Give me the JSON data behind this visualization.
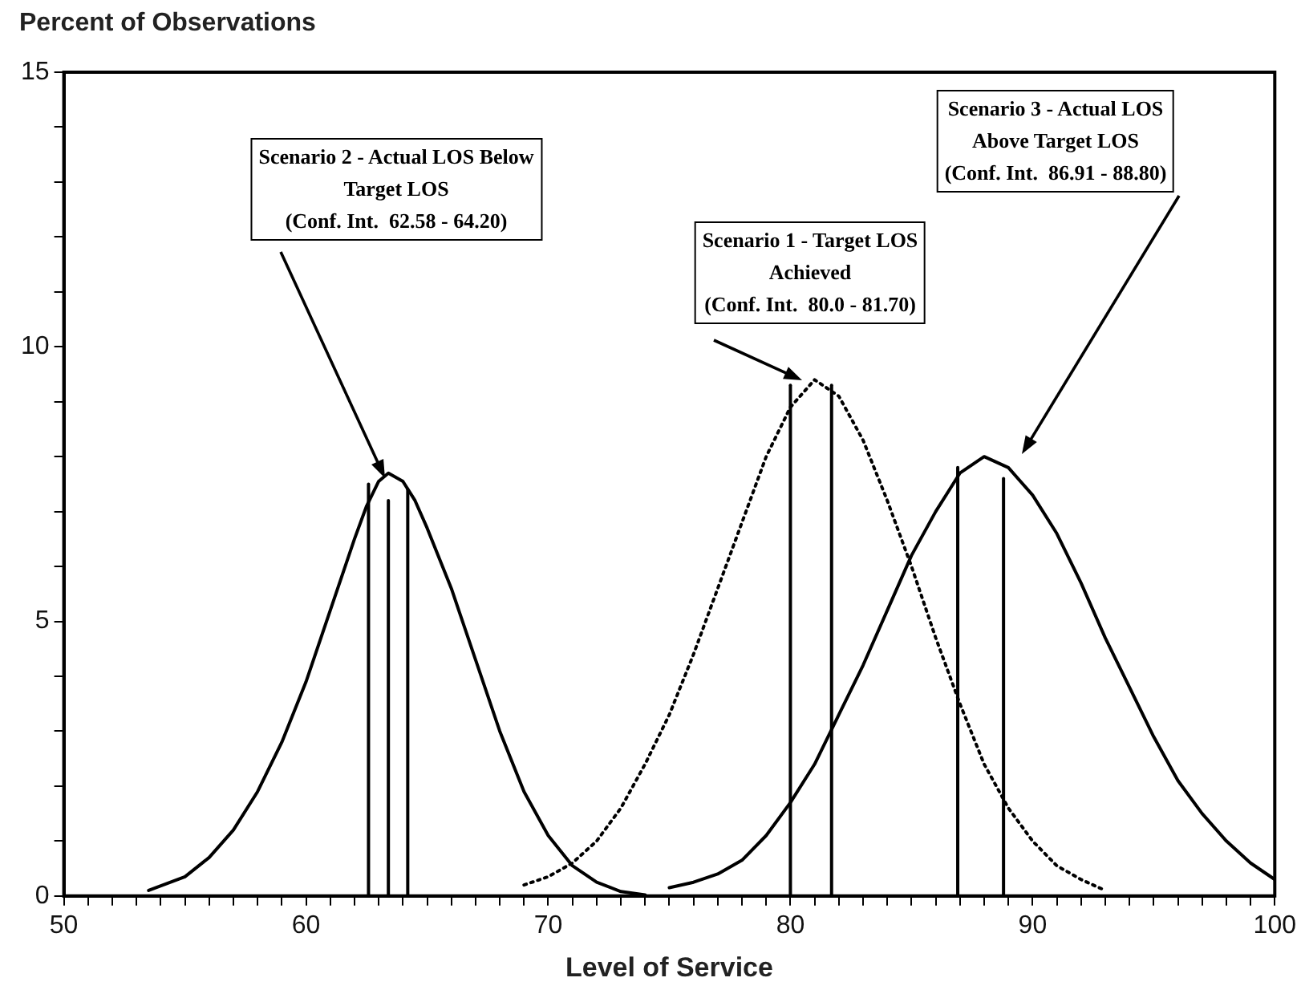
{
  "chart_data": {
    "type": "line",
    "ylabel": "Percent of Observations",
    "xlabel": "Level of Service",
    "xlim": [
      50,
      100
    ],
    "ylim": [
      0,
      15
    ],
    "xticks": [
      50,
      {
        "value": 51,
        "label": null
      },
      {
        "value": 52,
        "label": null
      },
      {
        "value": 53,
        "label": null
      },
      {
        "value": 54,
        "label": null
      },
      {
        "value": 55,
        "label": null
      },
      {
        "value": 56,
        "label": null
      },
      {
        "value": 57,
        "label": null
      },
      {
        "value": 58,
        "label": null
      },
      {
        "value": 59,
        "label": null
      },
      60,
      {
        "value": 61,
        "label": null
      },
      {
        "value": 62,
        "label": null
      },
      {
        "value": 63,
        "label": null
      },
      {
        "value": 64,
        "label": null
      },
      {
        "value": 65,
        "label": null
      },
      {
        "value": 66,
        "label": null
      },
      {
        "value": 67,
        "label": null
      },
      {
        "value": 68,
        "label": null
      },
      {
        "value": 69,
        "label": null
      },
      70,
      {
        "value": 71,
        "label": null
      },
      {
        "value": 72,
        "label": null
      },
      {
        "value": 73,
        "label": null
      },
      {
        "value": 74,
        "label": null
      },
      {
        "value": 75,
        "label": null
      },
      {
        "value": 76,
        "label": null
      },
      {
        "value": 77,
        "label": null
      },
      {
        "value": 78,
        "label": null
      },
      {
        "value": 79,
        "label": null
      },
      80,
      {
        "value": 81,
        "label": null
      },
      {
        "value": 82,
        "label": null
      },
      {
        "value": 83,
        "label": null
      },
      {
        "value": 84,
        "label": null
      },
      {
        "value": 85,
        "label": null
      },
      {
        "value": 86,
        "label": null
      },
      {
        "value": 87,
        "label": null
      },
      {
        "value": 88,
        "label": null
      },
      {
        "value": 89,
        "label": null
      },
      90,
      {
        "value": 91,
        "label": null
      },
      {
        "value": 92,
        "label": null
      },
      {
        "value": 93,
        "label": null
      },
      {
        "value": 94,
        "label": null
      },
      {
        "value": 95,
        "label": null
      },
      {
        "value": 96,
        "label": null
      },
      {
        "value": 97,
        "label": null
      },
      {
        "value": 98,
        "label": null
      },
      {
        "value": 99,
        "label": null
      },
      100
    ],
    "yticks": [
      0,
      {
        "value": 1,
        "label": null
      },
      {
        "value": 2,
        "label": null
      },
      {
        "value": 3,
        "label": null
      },
      {
        "value": 4,
        "label": null
      },
      5,
      {
        "value": 6,
        "label": null
      },
      {
        "value": 7,
        "label": null
      },
      {
        "value": 8,
        "label": null
      },
      {
        "value": 9,
        "label": null
      },
      10,
      {
        "value": 11,
        "label": null
      },
      {
        "value": 12,
        "label": null
      },
      {
        "value": 13,
        "label": null
      },
      {
        "value": 14,
        "label": null
      },
      15
    ],
    "grid": false,
    "legend": false,
    "marker": "none",
    "series": [
      {
        "color": "#000000",
        "line_style": "solid",
        "x": [
          53.5,
          55,
          56,
          57,
          58,
          59,
          60,
          61,
          62,
          62.5,
          63,
          63.4,
          64,
          64.5,
          65,
          66,
          67,
          68,
          69,
          70,
          71,
          72,
          73,
          74
        ],
        "values": [
          0.1,
          0.35,
          0.7,
          1.2,
          1.9,
          2.8,
          3.9,
          5.2,
          6.5,
          7.1,
          7.55,
          7.7,
          7.55,
          7.2,
          6.7,
          5.6,
          4.3,
          3.0,
          1.9,
          1.1,
          0.55,
          0.25,
          0.08,
          0.02
        ]
      },
      {
        "color": "#000000",
        "line_style": "dotted",
        "x": [
          69,
          70,
          71,
          72,
          73,
          74,
          75,
          76,
          77,
          78,
          79,
          80,
          81,
          82,
          83,
          84,
          85,
          86,
          87,
          88,
          89,
          90,
          91,
          92,
          93
        ],
        "values": [
          0.2,
          0.35,
          0.6,
          1.0,
          1.6,
          2.4,
          3.3,
          4.4,
          5.6,
          6.8,
          8.0,
          8.9,
          9.4,
          9.1,
          8.3,
          7.2,
          6.0,
          4.7,
          3.5,
          2.4,
          1.6,
          1.0,
          0.55,
          0.3,
          0.1
        ]
      },
      {
        "color": "#000000",
        "line_style": "solid",
        "x": [
          75,
          76,
          77,
          78,
          79,
          80,
          81,
          82,
          83,
          84,
          85,
          86,
          87,
          88,
          89,
          90,
          91,
          92,
          93,
          94,
          95,
          96,
          97,
          98,
          99,
          100
        ],
        "values": [
          0.15,
          0.25,
          0.4,
          0.65,
          1.1,
          1.7,
          2.4,
          3.3,
          4.2,
          5.2,
          6.2,
          7.0,
          7.7,
          8.0,
          7.8,
          7.3,
          6.6,
          5.7,
          4.7,
          3.8,
          2.9,
          2.1,
          1.5,
          1.0,
          0.6,
          0.3
        ]
      },
      {
        "color": "#000000",
        "line_style": "solid",
        "x": [
          62.58,
          62.58
        ],
        "values": [
          0,
          7.5
        ]
      },
      {
        "color": "#000000",
        "line_style": "solid",
        "x": [
          63.4,
          63.4
        ],
        "values": [
          0,
          7.2
        ]
      },
      {
        "color": "#000000",
        "line_style": "solid",
        "x": [
          64.2,
          64.2
        ],
        "values": [
          0,
          7.4
        ]
      },
      {
        "color": "#000000",
        "line_style": "solid",
        "x": [
          80,
          80
        ],
        "values": [
          0,
          9.3
        ]
      },
      {
        "color": "#000000",
        "line_style": "solid",
        "x": [
          81.7,
          81.7
        ],
        "values": [
          0,
          9.3
        ]
      },
      {
        "color": "#000000",
        "line_style": "solid",
        "x": [
          86.91,
          86.91
        ],
        "values": [
          0,
          7.8
        ]
      },
      {
        "color": "#000000",
        "line_style": "solid",
        "x": [
          88.8,
          88.8
        ],
        "values": [
          0,
          7.6
        ]
      }
    ],
    "annotations": [
      "Scenario 2 - Actual LOS Below\nTarget LOS\n(Conf. Int.  62.58 - 64.20)",
      "Scenario 1 - Target LOS\nAchieved\n(Conf. Int.  80.0 - 81.70)",
      "Scenario 3 - Actual LOS\nAbove Target LOS\n(Conf. Int.  86.91 - 88.80)"
    ]
  }
}
